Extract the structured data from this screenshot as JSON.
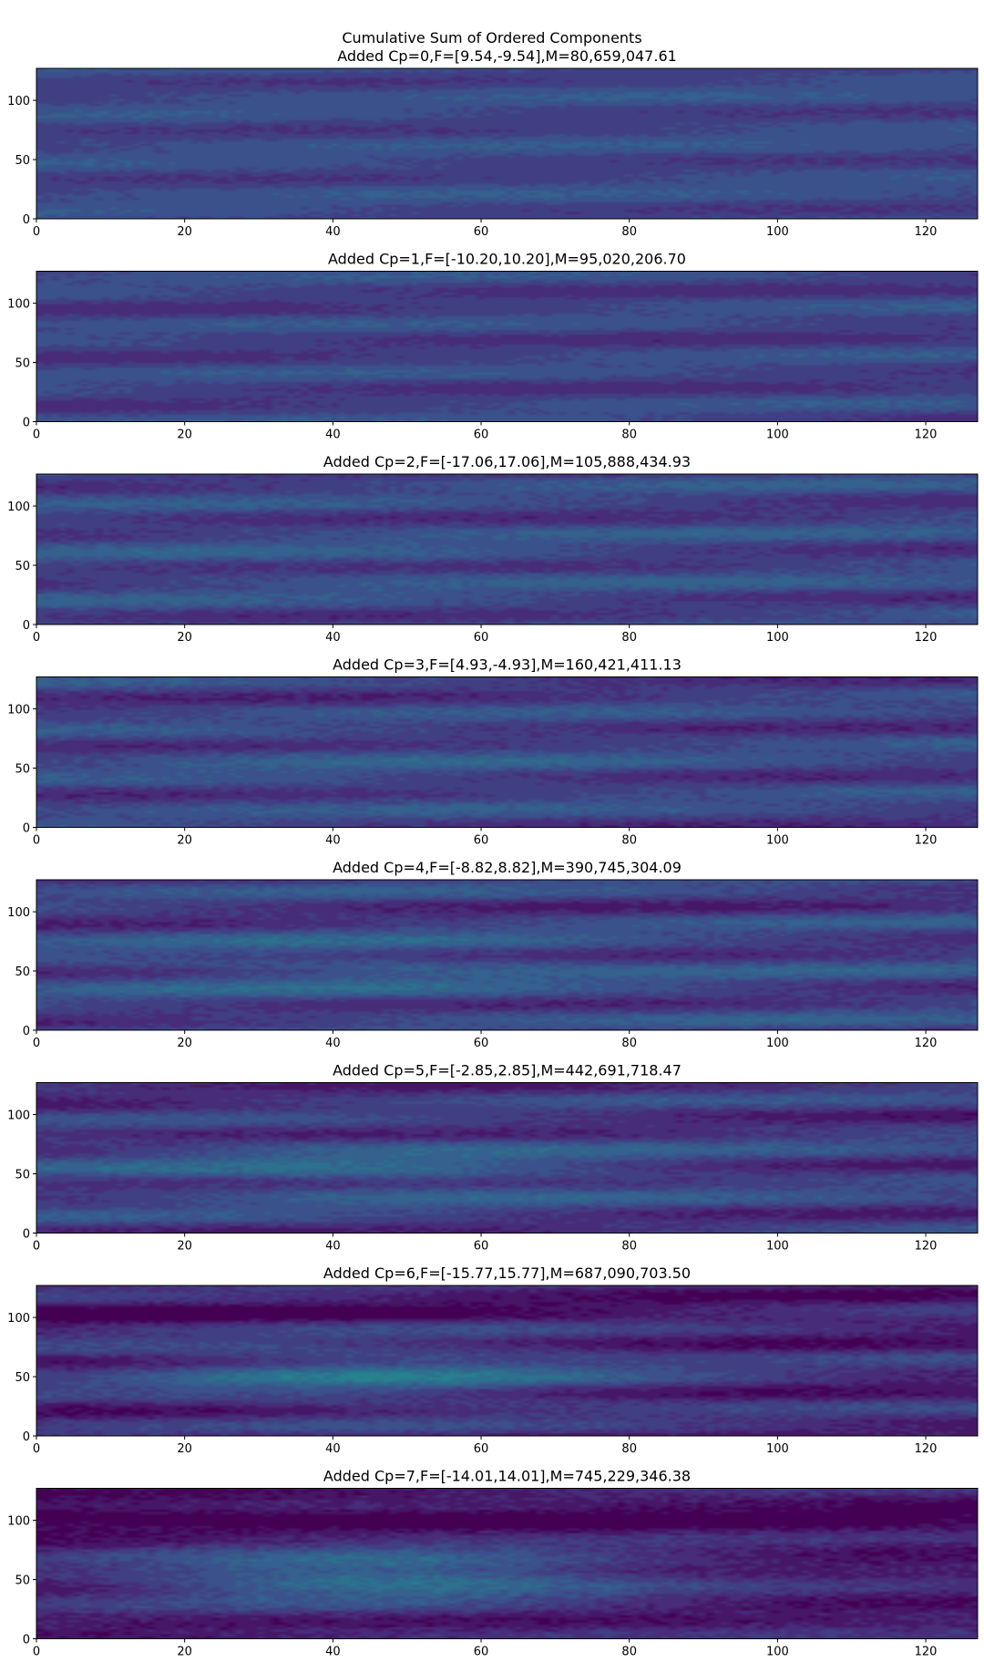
{
  "figure": {
    "suptitle": "Cumulative Sum of Ordered Components"
  },
  "chart_data": [
    {
      "type": "heatmap",
      "title": "Added Cp=0,F=[9.54,-9.54],M=80,659,047.61",
      "xlim": [
        0,
        127
      ],
      "ylim": [
        0,
        127
      ],
      "xticks": [
        0,
        20,
        40,
        60,
        80,
        100,
        120
      ],
      "yticks": [
        0,
        50,
        100
      ],
      "colormap": "viridis",
      "pattern": {
        "amp": 0.1,
        "base": 0.22,
        "blob": 0.0,
        "stripes": 0.05,
        "noise": 0.02
      }
    },
    {
      "type": "heatmap",
      "title": "Added Cp=1,F=[-10.20,10.20],M=95,020,206.70",
      "xlim": [
        0,
        127
      ],
      "ylim": [
        0,
        127
      ],
      "xticks": [
        0,
        20,
        40,
        60,
        80,
        100,
        120
      ],
      "yticks": [
        0,
        50,
        100
      ],
      "colormap": "viridis",
      "pattern": {
        "amp": 0.11,
        "base": 0.2,
        "blob": 0.0,
        "stripes": 0.06,
        "noise": 0.02
      }
    },
    {
      "type": "heatmap",
      "title": "Added Cp=2,F=[-17.06,17.06],M=105,888,434.93",
      "xlim": [
        0,
        127
      ],
      "ylim": [
        0,
        127
      ],
      "xticks": [
        0,
        20,
        40,
        60,
        80,
        100,
        120
      ],
      "yticks": [
        0,
        50,
        100
      ],
      "colormap": "viridis",
      "pattern": {
        "amp": 0.13,
        "base": 0.21,
        "blob": 0.03,
        "stripes": 0.07,
        "noise": 0.03
      }
    },
    {
      "type": "heatmap",
      "title": "Added Cp=3,F=[4.93,-4.93],M=160,421,411.13",
      "xlim": [
        0,
        127
      ],
      "ylim": [
        0,
        127
      ],
      "xticks": [
        0,
        20,
        40,
        60,
        80,
        100,
        120
      ],
      "yticks": [
        0,
        50,
        100
      ],
      "colormap": "viridis",
      "pattern": {
        "amp": 0.14,
        "base": 0.2,
        "blob": 0.04,
        "stripes": 0.07,
        "noise": 0.03
      }
    },
    {
      "type": "heatmap",
      "title": "Added Cp=4,F=[-8.82,8.82],M=390,745,304.09",
      "xlim": [
        0,
        127
      ],
      "ylim": [
        0,
        127
      ],
      "xticks": [
        0,
        20,
        40,
        60,
        80,
        100,
        120
      ],
      "yticks": [
        0,
        50,
        100
      ],
      "colormap": "viridis",
      "pattern": {
        "amp": 0.18,
        "base": 0.2,
        "blob": 0.08,
        "stripes": 0.08,
        "noise": 0.03
      }
    },
    {
      "type": "heatmap",
      "title": "Added Cp=5,F=[-2.85,2.85],M=442,691,718.47",
      "xlim": [
        0,
        127
      ],
      "ylim": [
        0,
        127
      ],
      "xticks": [
        0,
        20,
        40,
        60,
        80,
        100,
        120
      ],
      "yticks": [
        0,
        50,
        100
      ],
      "colormap": "viridis",
      "pattern": {
        "amp": 0.22,
        "base": 0.18,
        "blob": 0.12,
        "stripes": 0.08,
        "noise": 0.03
      }
    },
    {
      "type": "heatmap",
      "title": "Added Cp=6,F=[-15.77,15.77],M=687,090,703.50",
      "xlim": [
        0,
        127
      ],
      "ylim": [
        0,
        127
      ],
      "xticks": [
        0,
        20,
        40,
        60,
        80,
        100,
        120
      ],
      "yticks": [
        0,
        50,
        100
      ],
      "colormap": "viridis",
      "pattern": {
        "amp": 0.3,
        "base": 0.12,
        "blob": 0.2,
        "stripes": 0.08,
        "noise": 0.03
      }
    },
    {
      "type": "heatmap",
      "title": "Added Cp=7,F=[-14.01,14.01],M=745,229,346.38",
      "xlim": [
        0,
        127
      ],
      "ylim": [
        0,
        127
      ],
      "xticks": [
        0,
        20,
        40,
        60,
        80,
        100,
        120
      ],
      "yticks": [
        0,
        50,
        100
      ],
      "colormap": "viridis",
      "pattern": {
        "amp": 0.36,
        "base": 0.08,
        "blob": 0.3,
        "stripes": 0.05,
        "noise": 0.04
      }
    }
  ]
}
